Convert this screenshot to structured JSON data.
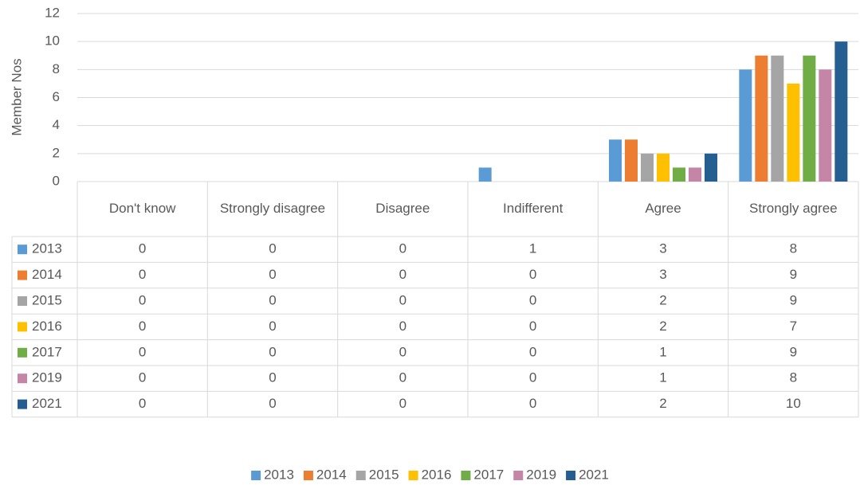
{
  "chart_data": {
    "type": "bar",
    "y_label": "Member Nos",
    "categories": [
      "Don't know",
      "Strongly disagree",
      "Disagree",
      "Indifferent",
      "Agree",
      "Strongly agree"
    ],
    "series": [
      {
        "name": "2013",
        "color": "#5b9bd5",
        "values": [
          0,
          0,
          0,
          1,
          3,
          8
        ]
      },
      {
        "name": "2014",
        "color": "#ed7d31",
        "values": [
          0,
          0,
          0,
          0,
          3,
          9
        ]
      },
      {
        "name": "2015",
        "color": "#a5a5a5",
        "values": [
          0,
          0,
          0,
          0,
          2,
          9
        ]
      },
      {
        "name": "2016",
        "color": "#ffc000",
        "values": [
          0,
          0,
          0,
          0,
          2,
          7
        ]
      },
      {
        "name": "2017",
        "color": "#70ad47",
        "values": [
          0,
          0,
          0,
          0,
          1,
          9
        ]
      },
      {
        "name": "2019",
        "color": "#c585a7",
        "values": [
          0,
          0,
          0,
          0,
          1,
          8
        ]
      },
      {
        "name": "2021",
        "color": "#255e91",
        "values": [
          0,
          0,
          0,
          0,
          2,
          10
        ]
      }
    ],
    "ylim": [
      0,
      12
    ],
    "yticks": [
      0,
      2,
      4,
      6,
      8,
      10,
      12
    ],
    "grid": true,
    "data_table": true,
    "legend": "bottom"
  }
}
